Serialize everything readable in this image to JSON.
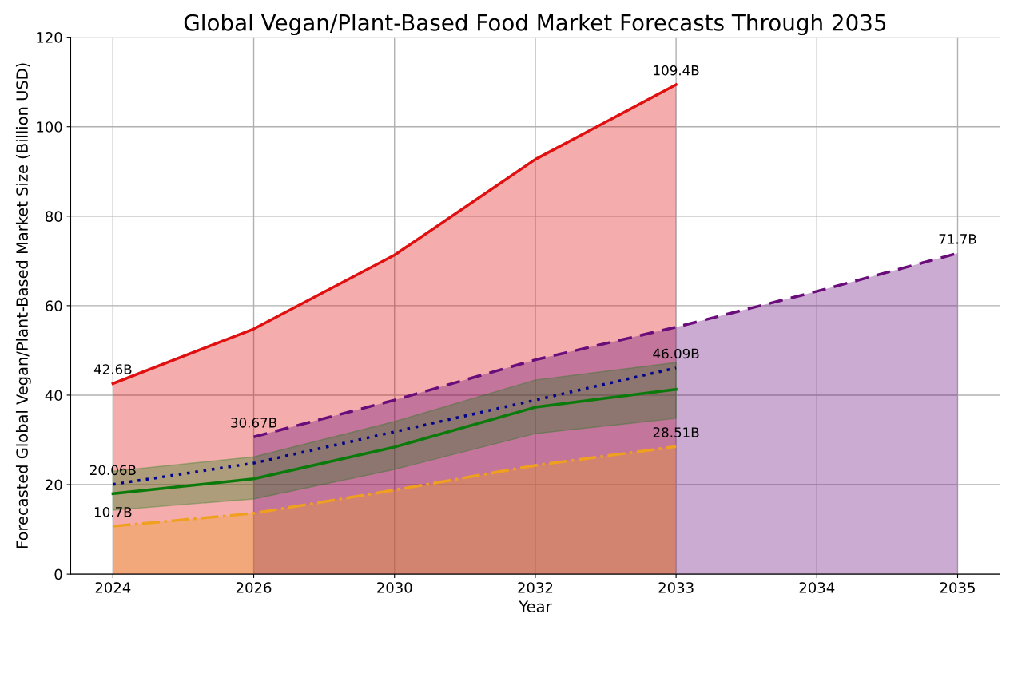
{
  "chart_data": {
    "type": "area",
    "title": "Global Vegan/Plant-Based Food Market Forecasts Through 2035",
    "xlabel": "Year",
    "ylabel": "Forecasted Global Vegan/Plant-Based Market Size (Billion USD)",
    "categories": [
      "2024",
      "2026",
      "2030",
      "2032",
      "2033",
      "2034",
      "2035"
    ],
    "ylim": [
      0,
      120
    ],
    "yticks": [
      0,
      20,
      40,
      60,
      80,
      100,
      120
    ],
    "grid": true,
    "series": [
      {
        "type": "area",
        "color": "#e01010",
        "line_style": "solid",
        "values": [
          42.6,
          54.8,
          71.3,
          92.7,
          109.4,
          null,
          null
        ],
        "value_labels": [
          "42.6B",
          null,
          null,
          null,
          "109.4B",
          null,
          null
        ]
      },
      {
        "type": "area",
        "color": "#6a0d7a",
        "line_style": "dashed",
        "values": [
          null,
          30.67,
          38.9,
          47.9,
          55.2,
          63.2,
          71.7
        ],
        "value_labels": [
          null,
          "30.67B",
          null,
          null,
          null,
          null,
          "71.7B"
        ]
      },
      {
        "type": "line",
        "color": "#00008b",
        "line_style": "dotted",
        "values": [
          20.06,
          24.8,
          31.8,
          38.9,
          46.09,
          null,
          null
        ],
        "value_labels": [
          "20.06B",
          null,
          null,
          null,
          "46.09B",
          null,
          null
        ]
      },
      {
        "type": "line",
        "color": "#0a7a0a",
        "line_style": "solid",
        "values": [
          18.0,
          21.3,
          28.4,
          37.3,
          41.3,
          null,
          null
        ],
        "lower": [
          14.3,
          16.8,
          23.4,
          31.4,
          34.8,
          null,
          null
        ],
        "upper": [
          23.0,
          26.2,
          34.1,
          43.4,
          47.3,
          null,
          null
        ]
      },
      {
        "type": "area",
        "color": "#f0a020",
        "line_style": "dashdot",
        "values": [
          10.7,
          13.6,
          18.8,
          24.3,
          28.51,
          null,
          null
        ],
        "value_labels": [
          "10.7B",
          null,
          null,
          null,
          "28.51B",
          null,
          null
        ]
      }
    ]
  }
}
